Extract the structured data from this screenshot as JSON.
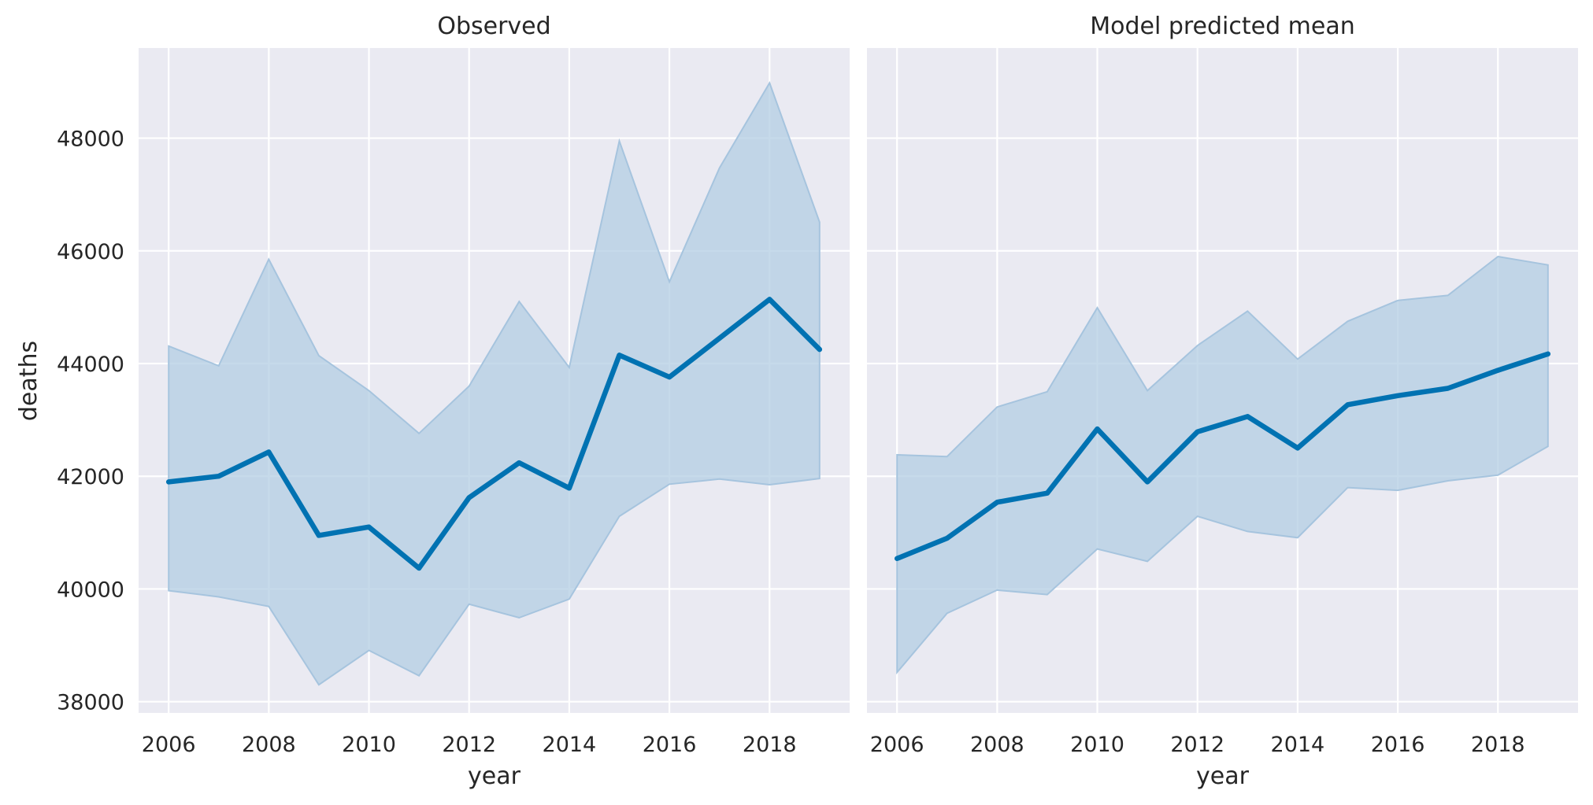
{
  "chart_data": {
    "type": "line",
    "ylabel": "deaths",
    "ylim": [
      37800,
      49600
    ],
    "yticks": [
      38000,
      40000,
      42000,
      44000,
      46000,
      48000
    ],
    "xlim": [
      2005.4,
      2019.6
    ],
    "xticks": [
      2006,
      2008,
      2010,
      2012,
      2014,
      2016,
      2018
    ],
    "grid": true,
    "legend": "none",
    "panels": [
      {
        "title": "Observed",
        "xlabel": "year",
        "x": [
          2006,
          2007,
          2008,
          2009,
          2010,
          2011,
          2012,
          2013,
          2014,
          2015,
          2016,
          2017,
          2018,
          2019
        ],
        "mean": [
          41900,
          42000,
          42430,
          40950,
          41100,
          40370,
          41620,
          42240,
          41790,
          44150,
          43760,
          44450,
          45140,
          44250
        ],
        "lower": [
          39970,
          39860,
          39690,
          38300,
          38910,
          38460,
          39730,
          39490,
          39820,
          41290,
          41860,
          41950,
          41850,
          41960
        ],
        "upper": [
          44310,
          43960,
          45850,
          44140,
          43520,
          42760,
          43600,
          45100,
          43930,
          47950,
          45450,
          47470,
          48980,
          46510
        ]
      },
      {
        "title": "Model predicted mean",
        "xlabel": "year",
        "x": [
          2006,
          2007,
          2008,
          2009,
          2010,
          2011,
          2012,
          2013,
          2014,
          2015,
          2016,
          2017,
          2018,
          2019
        ],
        "mean": [
          40540,
          40900,
          41540,
          41700,
          42840,
          41900,
          42790,
          43060,
          42500,
          43270,
          43430,
          43560,
          43880,
          44170
        ],
        "lower": [
          38520,
          39570,
          39980,
          39900,
          40710,
          40490,
          41290,
          41020,
          40910,
          41800,
          41750,
          41920,
          42020,
          42530
        ],
        "upper": [
          42380,
          42350,
          43230,
          43500,
          44990,
          43520,
          44320,
          44930,
          44080,
          44750,
          45120,
          45210,
          45900,
          45750
        ]
      }
    ]
  }
}
